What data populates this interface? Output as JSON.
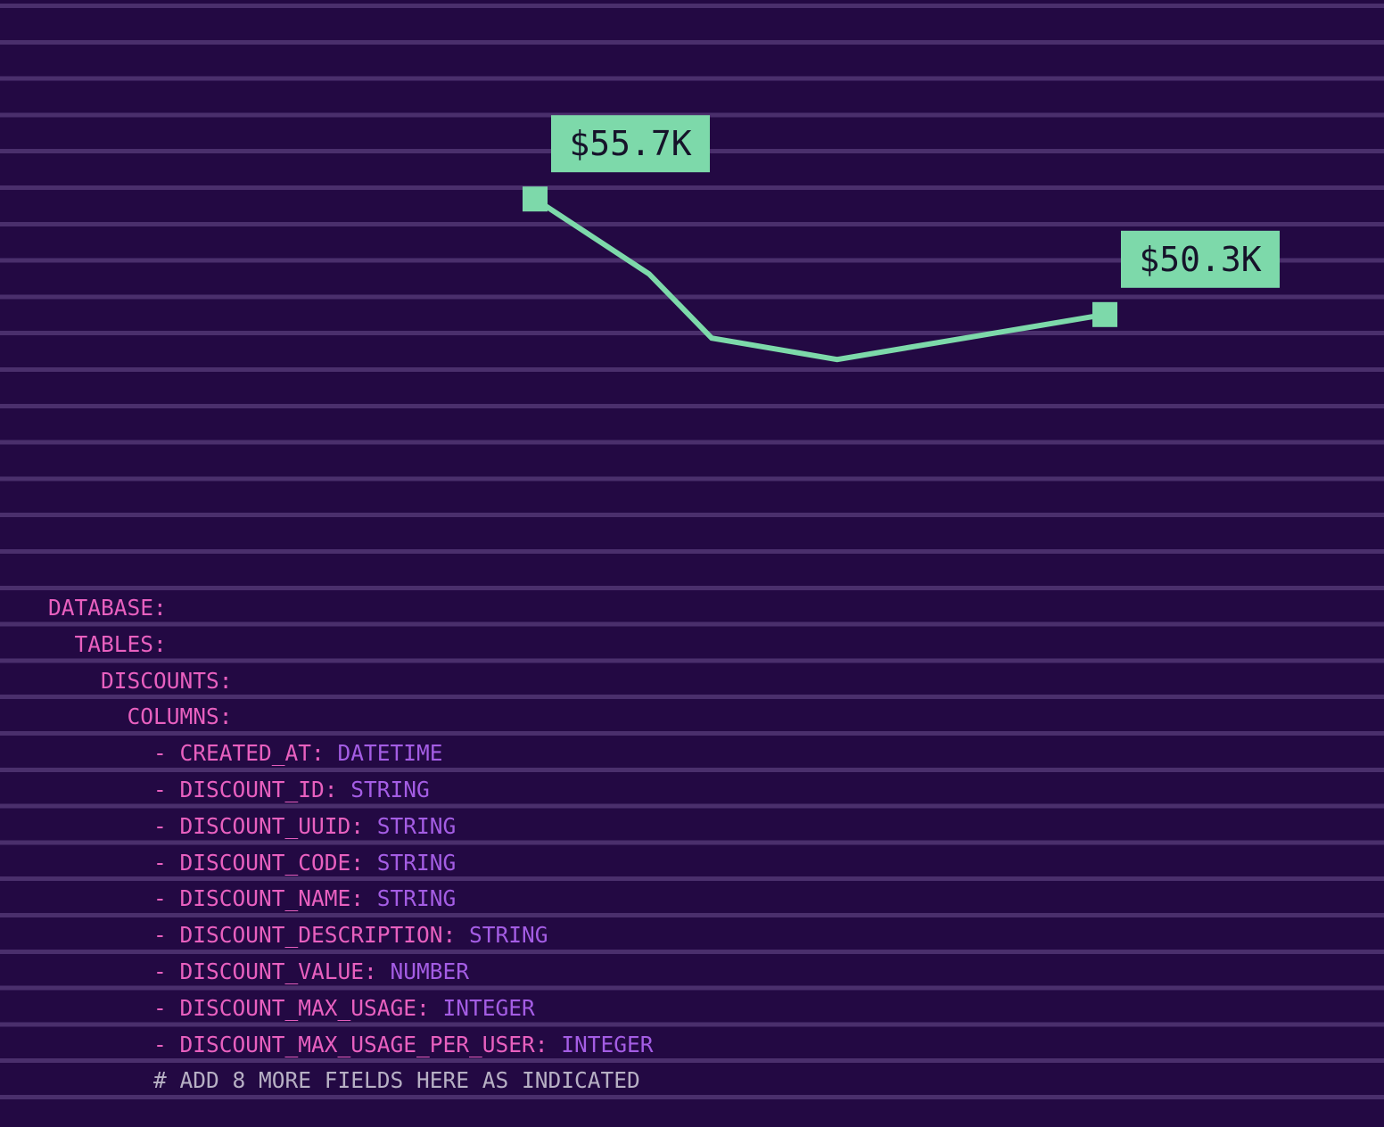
{
  "chart_data": {
    "type": "line",
    "series": [
      {
        "values": [
          55.7,
          52.2,
          49.2,
          48.7,
          48.2,
          50.3
        ],
        "labels": [
          "$55.7K",
          "",
          "",
          "",
          "",
          "$50.3K"
        ]
      }
    ],
    "x": [
      0,
      1,
      2,
      3,
      4,
      5
    ],
    "plotted_points": [
      {
        "x": 0,
        "y": 55.7
      },
      {
        "x": 1,
        "y": 52.2
      },
      {
        "x": 1.55,
        "y": 49.2
      },
      {
        "x": 2.65,
        "y": 48.2
      }
    ],
    "ylim": [
      40,
      60
    ],
    "grid": true,
    "colors": {
      "line": "#7dd9aa",
      "label_fill": "#7dd9aa",
      "label_text": "#16132a",
      "background": "#230943",
      "grid": "#4a2f6c"
    }
  },
  "schema": {
    "lines": [
      {
        "indent": "",
        "key": "DATABASE:",
        "type": ""
      },
      {
        "indent": "  ",
        "key": "TABLES:",
        "type": ""
      },
      {
        "indent": "    ",
        "key": "DISCOUNTS:",
        "type": ""
      },
      {
        "indent": "      ",
        "key": "COLUMNS:",
        "type": ""
      },
      {
        "indent": "        ",
        "key": "- CREATED_AT:",
        "type": "DATETIME"
      },
      {
        "indent": "        ",
        "key": "- DISCOUNT_ID:",
        "type": "STRING"
      },
      {
        "indent": "        ",
        "key": "- DISCOUNT_UUID:",
        "type": "STRING"
      },
      {
        "indent": "        ",
        "key": "- DISCOUNT_CODE:",
        "type": "STRING"
      },
      {
        "indent": "        ",
        "key": "- DISCOUNT_NAME:",
        "type": "STRING"
      },
      {
        "indent": "        ",
        "key": "- DISCOUNT_DESCRIPTION:",
        "type": "STRING"
      },
      {
        "indent": "        ",
        "key": "- DISCOUNT_VALUE:",
        "type": "NUMBER"
      },
      {
        "indent": "        ",
        "key": "- DISCOUNT_MAX_USAGE:",
        "type": "INTEGER"
      },
      {
        "indent": "        ",
        "key": "- DISCOUNT_MAX_USAGE_PER_USER:",
        "type": "INTEGER"
      }
    ],
    "comment": "# ADD 8 MORE FIELDS HERE AS INDICATED"
  },
  "colors": {
    "key": "#e860bf",
    "type": "#a45de4",
    "comment": "#b7b0c4"
  }
}
